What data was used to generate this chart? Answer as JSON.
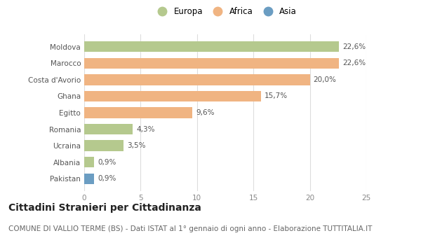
{
  "categories": [
    "Moldova",
    "Marocco",
    "Costa d'Avorio",
    "Ghana",
    "Egitto",
    "Romania",
    "Ucraina",
    "Albania",
    "Pakistan"
  ],
  "values": [
    22.6,
    22.6,
    20.0,
    15.7,
    9.6,
    4.3,
    3.5,
    0.9,
    0.9
  ],
  "labels": [
    "22,6%",
    "22,6%",
    "20,0%",
    "15,7%",
    "9,6%",
    "4,3%",
    "3,5%",
    "0,9%",
    "0,9%"
  ],
  "continents": [
    "Europa",
    "Africa",
    "Africa",
    "Africa",
    "Africa",
    "Europa",
    "Europa",
    "Europa",
    "Asia"
  ],
  "colors": {
    "Europa": "#b5c98e",
    "Africa": "#f0b482",
    "Asia": "#6b9dc2"
  },
  "xlim": [
    0,
    25
  ],
  "xticks": [
    0,
    5,
    10,
    15,
    20,
    25
  ],
  "title": "Cittadini Stranieri per Cittadinanza",
  "subtitle": "COMUNE DI VALLIO TERME (BS) - Dati ISTAT al 1° gennaio di ogni anno - Elaborazione TUTTITALIA.IT",
  "background_color": "#ffffff",
  "grid_color": "#dddddd",
  "bar_height": 0.65,
  "title_fontsize": 10,
  "subtitle_fontsize": 7.5,
  "label_fontsize": 7.5,
  "tick_fontsize": 7.5,
  "legend_fontsize": 8.5
}
